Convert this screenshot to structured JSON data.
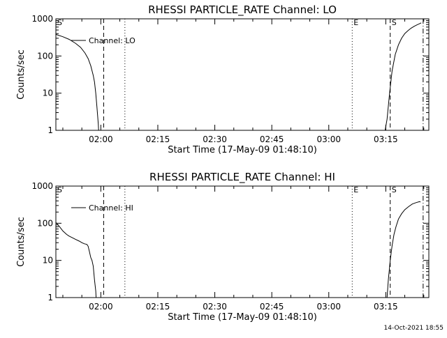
{
  "timestamp": "14-Oct-2021 18:55",
  "x_time_axis": {
    "start_time_label": "Start Time (17-May-09 01:48:10)",
    "start_seconds": 6490,
    "range_seconds": [
      6490,
      12380
    ],
    "tick_seconds": [
      7200,
      8100,
      9000,
      9900,
      10800,
      11700
    ],
    "tick_labels": [
      "02:00",
      "02:15",
      "02:30",
      "02:45",
      "03:00",
      "03:15"
    ]
  },
  "event_lines": [
    {
      "label": "",
      "style": "dashed",
      "t_seconds": 7245
    },
    {
      "label": "",
      "style": "dotted",
      "t_seconds": 7580
    },
    {
      "label": "E",
      "style": "dotted",
      "t_seconds": 11170
    },
    {
      "label": "S",
      "style": "dashed",
      "t_seconds": 11770
    },
    {
      "label": "",
      "style": "dashdot",
      "t_seconds": 12290
    }
  ],
  "start_marker": {
    "label": "S",
    "t_seconds": 6490
  },
  "chart_data": [
    {
      "type": "line",
      "title": "RHESSI PARTICLE_RATE Channel: LO",
      "xlabel": "Start Time (17-May-09 01:48:10)",
      "ylabel": "Counts/sec",
      "yscale": "log",
      "ylim": [
        1,
        1000
      ],
      "ytick_values": [
        1,
        10,
        100,
        1000
      ],
      "ytick_labels": [
        "1",
        "10",
        "100",
        "1000"
      ],
      "legend": {
        "placement": "top-left",
        "entries": [
          "Channel: LO"
        ]
      },
      "series": [
        {
          "name": "Channel: LO",
          "segments": [
            [
              [
                6490,
                380
              ],
              [
                6600,
                330
              ],
              [
                6700,
                280
              ],
              [
                6800,
                220
              ],
              [
                6880,
                170
              ],
              [
                6950,
                120
              ],
              [
                7000,
                85
              ],
              [
                7040,
                55
              ],
              [
                7080,
                30
              ],
              [
                7100,
                20
              ],
              [
                7120,
                10
              ],
              [
                7140,
                4
              ],
              [
                7160,
                1.5
              ],
              [
                7165,
                1
              ]
            ],
            [
              [
                11690,
                1
              ],
              [
                11720,
                2
              ],
              [
                11760,
                10
              ],
              [
                11800,
                40
              ],
              [
                11850,
                110
              ],
              [
                11900,
                200
              ],
              [
                11950,
                300
              ],
              [
                12000,
                400
              ],
              [
                12050,
                480
              ],
              [
                12100,
                560
              ],
              [
                12150,
                630
              ],
              [
                12200,
                700
              ],
              [
                12220,
                720
              ],
              [
                12260,
                780
              ]
            ]
          ]
        }
      ]
    },
    {
      "type": "line",
      "title": "RHESSI PARTICLE_RATE Channel: HI",
      "xlabel": "Start Time (17-May-09 01:48:10)",
      "ylabel": "Counts/sec",
      "yscale": "log",
      "ylim": [
        1,
        1000
      ],
      "ytick_values": [
        1,
        10,
        100,
        1000
      ],
      "ytick_labels": [
        "1",
        "10",
        "100",
        "1000"
      ],
      "legend": {
        "placement": "top-left",
        "entries": [
          "Channel: HI"
        ]
      },
      "series": [
        {
          "name": "Channel: HI",
          "segments": [
            [
              [
                6490,
                105
              ],
              [
                6550,
                80
              ],
              [
                6600,
                62
              ],
              [
                6660,
                50
              ],
              [
                6700,
                45
              ],
              [
                6760,
                40
              ],
              [
                6800,
                37
              ],
              [
                6860,
                33
              ],
              [
                6900,
                30
              ],
              [
                6940,
                28
              ],
              [
                6980,
                27
              ],
              [
                7000,
                24
              ],
              [
                7020,
                17
              ],
              [
                7040,
                12
              ],
              [
                7060,
                10
              ],
              [
                7080,
                7
              ],
              [
                7100,
                3
              ],
              [
                7120,
                1.5
              ],
              [
                7125,
                1
              ]
            ],
            [
              [
                11720,
                1
              ],
              [
                11740,
                3
              ],
              [
                11770,
                10
              ],
              [
                11800,
                25
              ],
              [
                11830,
                50
              ],
              [
                11860,
                80
              ],
              [
                11900,
                130
              ],
              [
                11950,
                180
              ],
              [
                12000,
                230
              ],
              [
                12060,
                280
              ],
              [
                12120,
                330
              ],
              [
                12180,
                360
              ],
              [
                12230,
                380
              ],
              [
                12250,
                375
              ]
            ]
          ]
        }
      ]
    }
  ]
}
